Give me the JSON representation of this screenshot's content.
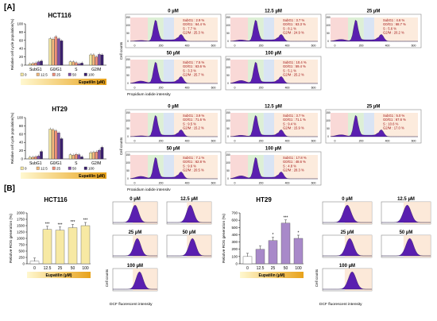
{
  "panels": {
    "a_label": "[A]",
    "b_label": "[B]"
  },
  "cellcycle": {
    "hct116_title": "HCT116",
    "ht29_title": "HT29",
    "ylabel_a": "Relative cell cycle population(%)",
    "ylabel_b": "Relative cell cycle population(%)",
    "phases": [
      "SubG1",
      "G0/G1",
      "S",
      "G2/M"
    ],
    "legend": [
      "0",
      "12.5",
      "25",
      "50",
      "100"
    ],
    "xlabel": "Eupatilin (µM)",
    "ylim": [
      0,
      100
    ],
    "yticks": [
      "0",
      "20",
      "40",
      "60",
      "80",
      "100"
    ],
    "x_axis_title": "Propidium iodide intensity",
    "y_axis_title": "Cell counts"
  },
  "histo_hct116": [
    {
      "title": "0 µM",
      "lines": [
        "SubG1 : 2.9 %",
        "G0/G1 : 64.4 %",
        "S : 7.7 %",
        "G2/M : 25.3 %"
      ]
    },
    {
      "title": "12.5 µM",
      "lines": [
        "SubG1 : 3.7 %",
        "G0/G1 : 63.3 %",
        "S : 8.1 %",
        "G2/M : 24.9 %"
      ]
    },
    {
      "title": "25 µM",
      "lines": [
        "SubG1 : 4.6 %",
        "G0/G1 : 68.7 %",
        "S : 5.6 %",
        "G2/M : 20.2 %"
      ]
    },
    {
      "title": "50 µM",
      "lines": [
        "SubG1 : 7.5 %",
        "G0/G1 : 63.6 %",
        "S : 3.3 %",
        "G2/M : 25.7 %"
      ]
    },
    {
      "title": "100 µM",
      "lines": [
        "SubG1 : 10.4 %",
        "G0/G1 : 59.4 %",
        "S : 5.1 %",
        "G2/M : 25.2 %"
      ]
    }
  ],
  "histo_ht29": [
    {
      "title": "0 µM",
      "lines": [
        "SubG1 : 3.9 %",
        "G0/G1 : 71.6 %",
        "S : 9.5 %",
        "G2/M : 15.2 %"
      ]
    },
    {
      "title": "12.5 µM",
      "lines": [
        "SubG1 : 3.7 %",
        "G0/G1 : 71.1 %",
        "S : 9.4 %",
        "G2/M : 15.9 %"
      ]
    },
    {
      "title": "25 µM",
      "lines": [
        "SubG1 : 5.0 %",
        "G0/G1 : 67.6 %",
        "S : 10.6 %",
        "G2/M : 17.0 %"
      ]
    },
    {
      "title": "50 µM",
      "lines": [
        "SubG1 : 7.1 %",
        "G0/G1 : 62.8 %",
        "S : 9.6 %",
        "G2/M : 20.5 %"
      ]
    },
    {
      "title": "100 µM",
      "lines": [
        "SubG1 : 17.8 %",
        "G0/G1 : 48.6 %",
        "S : 4.8 %",
        "G2/M : 28.3 %"
      ]
    }
  ],
  "histo_ticks": {
    "x": [
      "0",
      "200",
      "400",
      "600"
    ],
    "y": [
      "0",
      "50",
      "100",
      "150"
    ]
  },
  "ros": {
    "hct116_title": "HCT116",
    "ht29_title": "HT29",
    "ylabel": "Relative ROS generation (%)",
    "xlabel": "Eupatilin (µM)",
    "categories": [
      "0",
      "12.5",
      "25",
      "50",
      "100"
    ],
    "yticks_hct": [
      "0",
      "250",
      "500",
      "750",
      "1000",
      "1250",
      "1500",
      "1750",
      "2000"
    ],
    "yticks_ht": [
      "0",
      "100",
      "200",
      "300",
      "400",
      "500",
      "600",
      "700"
    ],
    "stars": "***",
    "star_single": "*",
    "facs_titles": [
      "0 µM",
      "12.5 µM",
      "25 µM",
      "50 µM",
      "100 µM"
    ],
    "facs_xlabel": "DCF fluorescent intensity",
    "facs_ylabel": "Cell counts"
  },
  "chart_data": [
    {
      "type": "bar",
      "title": "HCT116",
      "categories": [
        "SubG1",
        "G0/G1",
        "S",
        "G2/M"
      ],
      "series": [
        {
          "name": "0",
          "values": [
            3,
            64,
            8,
            25
          ]
        },
        {
          "name": "12.5",
          "values": [
            4,
            63,
            8,
            25
          ]
        },
        {
          "name": "25",
          "values": [
            5,
            69,
            6,
            20
          ]
        },
        {
          "name": "50",
          "values": [
            8,
            64,
            3,
            26
          ]
        },
        {
          "name": "100",
          "values": [
            10,
            59,
            5,
            25
          ]
        }
      ],
      "xlabel": "Eupatilin (µM)",
      "ylabel": "Relative cell cycle population(%)",
      "ylim": [
        0,
        100
      ]
    },
    {
      "type": "bar",
      "title": "HT29",
      "categories": [
        "SubG1",
        "G0/G1",
        "S",
        "G2/M"
      ],
      "series": [
        {
          "name": "0",
          "values": [
            4,
            72,
            10,
            15
          ]
        },
        {
          "name": "12.5",
          "values": [
            4,
            71,
            9,
            16
          ]
        },
        {
          "name": "25",
          "values": [
            5,
            68,
            11,
            17
          ]
        },
        {
          "name": "50",
          "values": [
            7,
            63,
            10,
            21
          ]
        },
        {
          "name": "100",
          "values": [
            18,
            49,
            5,
            28
          ]
        }
      ],
      "xlabel": "Eupatilin (µM)",
      "ylabel": "Relative cell cycle population(%)",
      "ylim": [
        0,
        100
      ]
    },
    {
      "type": "bar",
      "title": "HCT116",
      "categories": [
        "0",
        "12.5",
        "25",
        "50",
        "100"
      ],
      "values": [
        100,
        1350,
        1320,
        1420,
        1500
      ],
      "xlabel": "Eupatilin (µM)",
      "ylabel": "Relative ROS generation (%)",
      "ylim": [
        0,
        2000
      ]
    },
    {
      "type": "bar",
      "title": "HT29",
      "categories": [
        "0",
        "12.5",
        "25",
        "50",
        "100"
      ],
      "values": [
        100,
        200,
        320,
        560,
        350
      ],
      "xlabel": "Eupatilin (µM)",
      "ylabel": "Relative ROS generation (%)",
      "ylim": [
        0,
        700
      ]
    }
  ],
  "colors": {
    "purple": "#5a1fb0",
    "series": [
      "#f2e6a0",
      "#f3b87a",
      "#f08f7a",
      "#7d4ea6",
      "#3a1f6e"
    ],
    "ros_bar_hct": "#f7e9a3",
    "ros_bar_ht": "#a889c9",
    "gradient_start": "#fff8d0",
    "gradient_end": "#e8a21a",
    "pink": "#f6c9c6",
    "green": "#cfe8c4",
    "blue": "#c9d8ef",
    "peach": "#fbe3cf"
  }
}
